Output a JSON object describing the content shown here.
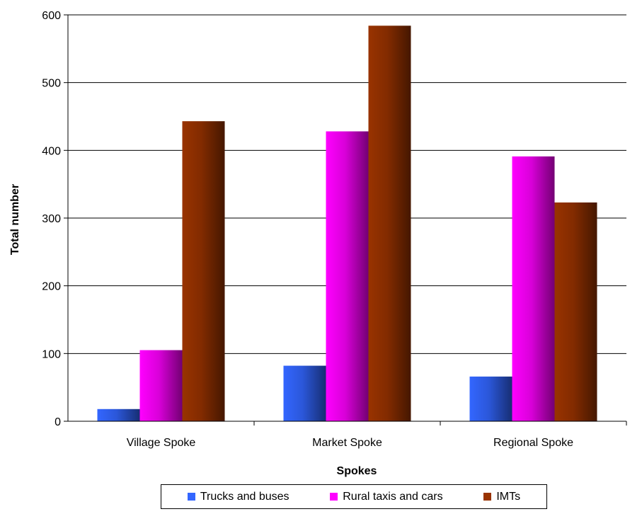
{
  "chart_data": {
    "type": "bar",
    "categories": [
      "Village Spoke",
      "Market Spoke",
      "Regional Spoke"
    ],
    "series": [
      {
        "name": "Trucks and buses",
        "values": [
          18,
          82,
          66
        ],
        "color": "#3366FF"
      },
      {
        "name": "Rural taxis and cars",
        "values": [
          105,
          428,
          391
        ],
        "color": "#FF00FF"
      },
      {
        "name": "IMTs",
        "values": [
          443,
          584,
          323
        ],
        "color": "#993300"
      }
    ],
    "title": "",
    "xlabel": "Spokes",
    "ylabel": "Total number",
    "ylim": [
      0,
      600
    ],
    "yticks": [
      "0",
      "100",
      "200",
      "300",
      "400",
      "500",
      "600"
    ],
    "grid": true,
    "legend": "bottom"
  }
}
